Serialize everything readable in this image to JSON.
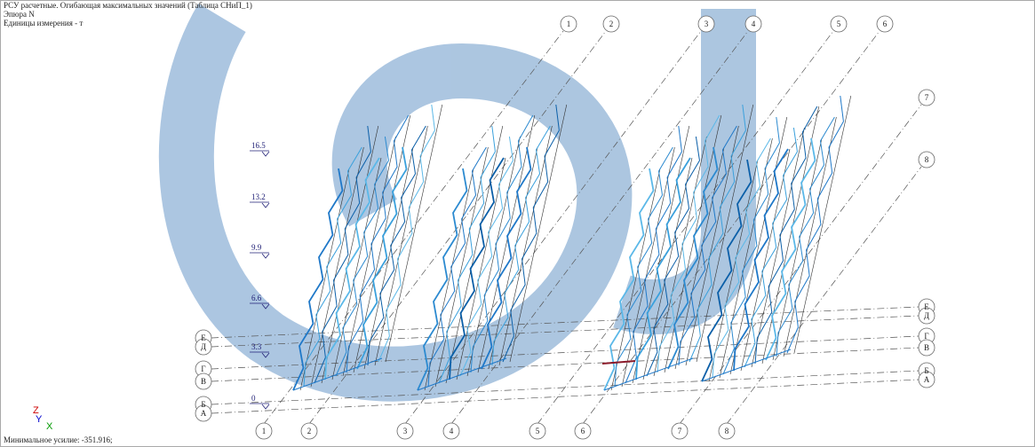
{
  "header": {
    "lines": [
      "РСУ расчетные. Огибающая максимальных значений (Таблица СНиП_1)",
      "Эпюра  N",
      "Единицы измерения - т"
    ]
  },
  "levels": [
    16.5,
    13.2,
    9.9,
    6.6,
    3.3,
    0
  ],
  "grid_axes": {
    "top_numbers": [
      "1",
      "2",
      "3",
      "4",
      "5",
      "6",
      "7",
      "8"
    ],
    "bottom_numbers": [
      "1",
      "2",
      "3",
      "4",
      "5",
      "6",
      "7",
      "8"
    ],
    "left_letters": [
      "Е",
      "Д",
      "Г",
      "В",
      "Б",
      "А"
    ],
    "right_letters": [
      "Е",
      "Д",
      "Г",
      "В",
      "Б",
      "А"
    ]
  },
  "coord_axes": [
    "Z",
    "Y",
    "X"
  ],
  "footer": "Минимальное усилие: -351.916;"
}
